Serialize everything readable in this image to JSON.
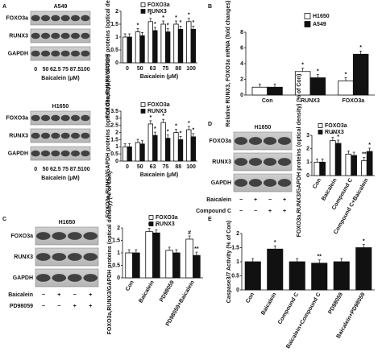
{
  "panel_letters": [
    "A",
    "B",
    "C",
    "D",
    "E"
  ],
  "blots": [
    {
      "title": "A549",
      "rows": [
        "FOXO3a",
        "RUNX3",
        "GAPDH"
      ],
      "lanes": [
        "0",
        "50",
        "62.5",
        "75",
        "87.5",
        "100"
      ],
      "lane_axis_label": "Baicalein (μM)"
    },
    {
      "title": "H1650",
      "rows": [
        "FOXO3a",
        "RUNX3",
        "GAPDH"
      ],
      "lanes": [
        "0",
        "50",
        "62.5",
        "75",
        "87.5",
        "100"
      ],
      "lane_axis_label": "Baicalein (μM)"
    },
    {
      "title": "H1650",
      "rows": [
        "FOXO3a",
        "RUNX3",
        "GAPDH"
      ],
      "treatments": [
        {
          "name": "Baicalein",
          "signs": [
            "−",
            "+",
            "−",
            "+"
          ]
        },
        {
          "name": "Compound C",
          "signs": [
            "−",
            "−",
            "+",
            "+"
          ]
        }
      ]
    },
    {
      "title": "H1650",
      "rows": [
        "FOXO3a",
        "RUNX3",
        "GAPDH"
      ],
      "treatments": [
        {
          "name": "Baicalein",
          "signs": [
            "−",
            "+",
            "−",
            "+"
          ]
        },
        {
          "name": "PD98059",
          "signs": [
            "−",
            "−",
            "+",
            "+"
          ]
        }
      ]
    }
  ],
  "chart_data": [
    {
      "type": "bar",
      "ylabel": "FOXO3a,RUNX3/GAPDH proteins (optical density) (% of Con)",
      "xlabel": "Baicalein (μM)",
      "categories": [
        "0",
        "50",
        "63",
        "75",
        "88",
        "100"
      ],
      "series": [
        {
          "name": "FOXO3a",
          "color": "#ffffff",
          "values": [
            1,
            1.2,
            1.6,
            1.5,
            1.5,
            1.6
          ],
          "significance": [
            null,
            "*",
            "*",
            "*",
            "*",
            "*"
          ]
        },
        {
          "name": "RUNX3",
          "color": "#111111",
          "values": [
            1,
            1.05,
            1.25,
            1.2,
            1.3,
            1.3
          ],
          "significance": [
            null,
            null,
            "*",
            "*",
            "*",
            "*"
          ]
        }
      ],
      "ylim": [
        0,
        2
      ],
      "yticks": [
        0,
        0.5,
        1,
        1.5,
        2
      ]
    },
    {
      "type": "bar",
      "ylabel": "FOXO3a,RUNX3/GAPDH proteins (optical density) (% of Con)",
      "xlabel": "Baicalein (μM)",
      "categories": [
        "0",
        "50",
        "63",
        "75",
        "88",
        "100"
      ],
      "series": [
        {
          "name": "FOXO3a",
          "color": "#ffffff",
          "values": [
            1,
            1.3,
            2.6,
            2.7,
            2,
            2.2
          ],
          "significance": [
            null,
            null,
            "*",
            "*",
            "*",
            "*"
          ]
        },
        {
          "name": "RUNX3",
          "color": "#111111",
          "values": [
            1,
            1.2,
            1.8,
            1.6,
            1.5,
            1.7
          ],
          "significance": [
            null,
            null,
            "*",
            "*",
            "*",
            "*"
          ]
        }
      ],
      "ylim": [
        0,
        3.5
      ],
      "yticks": [
        0,
        0.5,
        1,
        1.5,
        2,
        2.5,
        3,
        3.5
      ]
    },
    {
      "type": "bar",
      "ylabel": "Relative RUNX3, FOXO3a mRNA (fold changes)",
      "categories": [
        "Con",
        "RUNX3",
        "FOXO3a"
      ],
      "series": [
        {
          "name": "H1650",
          "color": "#ffffff",
          "values": [
            1,
            3,
            1.8
          ],
          "significance": [
            null,
            "*",
            "*"
          ]
        },
        {
          "name": "A549",
          "color": "#111111",
          "values": [
            1,
            2.2,
            5.2
          ],
          "significance": [
            null,
            "*",
            "*"
          ]
        }
      ],
      "ylim": [
        0,
        8
      ],
      "yticks": [
        0,
        2,
        4,
        6,
        8
      ]
    },
    {
      "type": "bar",
      "ylabel": "FOXO3a,RUNX3/GAPDH proteins (optical density) (% of Con)",
      "categories": [
        "Con",
        "Baicalein",
        "Compound C",
        "Compound C+Baicalein"
      ],
      "series": [
        {
          "name": "FOXO3a",
          "color": "#ffffff",
          "values": [
            1,
            2.6,
            1.6,
            1.1
          ],
          "significance": [
            null,
            "*",
            null,
            "**"
          ]
        },
        {
          "name": "RUNX3",
          "color": "#111111",
          "values": [
            1,
            2.4,
            1.5,
            1.8
          ],
          "significance": [
            null,
            "*",
            null,
            "*"
          ]
        }
      ],
      "ylim": [
        0,
        3
      ],
      "yticks": [
        0,
        1,
        2,
        3
      ]
    },
    {
      "type": "bar",
      "ylabel": "FOXO3a,RUNX3/GAPDH proteins (optical density) (% of Con)",
      "categories": [
        "Con",
        "Baicalein",
        "PD98059",
        "PD98059+Baicalein"
      ],
      "series": [
        {
          "name": "FOXO3a",
          "color": "#ffffff",
          "values": [
            1,
            1.85,
            1.1,
            1.55
          ],
          "significance": [
            null,
            "*",
            null,
            "#"
          ]
        },
        {
          "name": "RUNX3",
          "color": "#111111",
          "values": [
            1,
            1.8,
            1,
            0.9
          ],
          "significance": [
            null,
            "*",
            null,
            "**"
          ]
        }
      ],
      "ylim": [
        0,
        2
      ],
      "yticks": [
        0,
        0.5,
        1,
        1.5,
        2
      ]
    },
    {
      "type": "bar",
      "ylabel": "Caspase3/7 Activity (% of Con)",
      "categories": [
        "Con",
        "Baicalein",
        "Compound C",
        "Baicalein+Compound C",
        "PD98059",
        "Baicalein+PD98059"
      ],
      "series": [
        {
          "color": "#111111",
          "values": [
            1,
            1.45,
            1,
            0.95,
            1,
            1.5
          ],
          "significance": [
            null,
            "*",
            null,
            "**",
            null,
            "*"
          ]
        }
      ],
      "ylim": [
        0,
        2
      ],
      "yticks": [
        0,
        0.5,
        1,
        1.5,
        2
      ]
    }
  ]
}
